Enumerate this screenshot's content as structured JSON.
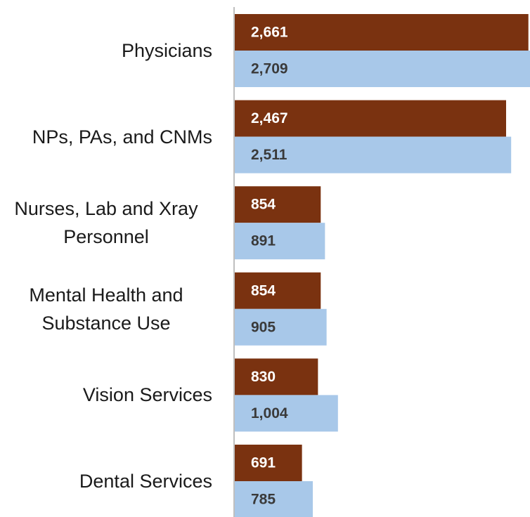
{
  "chart_data": {
    "type": "bar",
    "orientation": "horizontal",
    "categories": [
      "Physicians",
      "NPs, PAs, and CNMs",
      "Nurses, Lab and Xray Personnel",
      "Mental Health and Substance Use",
      "Vision Services",
      "Dental Services"
    ],
    "series": [
      {
        "color": "#7a3210",
        "label_color": "#ffffff",
        "values": [
          2661,
          2467,
          854,
          854,
          830,
          691
        ],
        "value_labels": [
          "2,661",
          "2,467",
          "854",
          "854",
          "830",
          "691"
        ]
      },
      {
        "color": "#a8c8e9",
        "label_color": "#3a3a3a",
        "values": [
          2709,
          2511,
          891,
          905,
          1004,
          785
        ],
        "value_labels": [
          "2,709",
          "2,511",
          "891",
          "905",
          "1,004",
          "785"
        ]
      }
    ],
    "xlim": [
      100,
      2675
    ]
  }
}
